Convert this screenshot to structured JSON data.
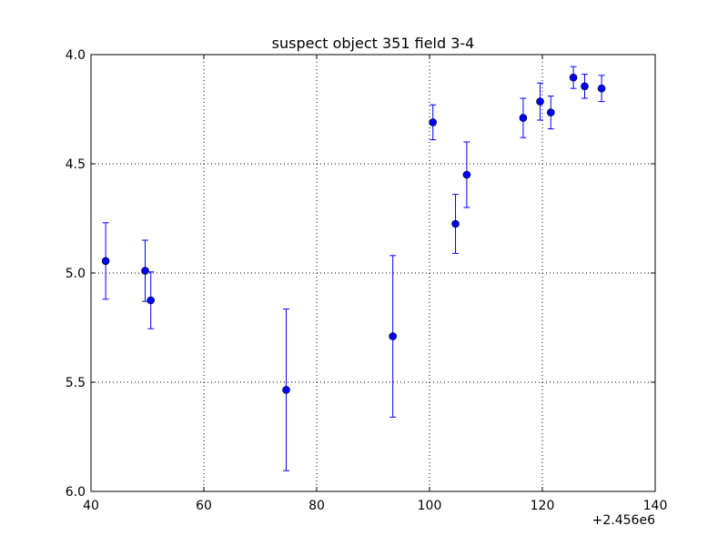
{
  "chart_data": {
    "type": "scatter",
    "title": "suspect object 351 field 3-4",
    "xlabel": "",
    "ylabel": "",
    "x_offset_label": "+2.456e6",
    "xlim": [
      40,
      140
    ],
    "ylim": [
      4.0,
      6.0
    ],
    "y_inverted": true,
    "grid": true,
    "x_ticks": [
      "40",
      "60",
      "80",
      "100",
      "120",
      "140"
    ],
    "y_ticks": [
      "4.0",
      "4.5",
      "5.0",
      "5.5",
      "6.0"
    ],
    "marker_color": "#0000ff",
    "series": [
      {
        "points": [
          {
            "x": 42.6,
            "y": 4.945,
            "err": 0.175
          },
          {
            "x": 49.6,
            "y": 4.99,
            "err": 0.14
          },
          {
            "x": 50.6,
            "y": 5.125,
            "err": 0.13
          },
          {
            "x": 74.6,
            "y": 5.535,
            "err": 0.37
          },
          {
            "x": 93.5,
            "y": 5.29,
            "err": 0.37
          },
          {
            "x": 100.6,
            "y": 4.31,
            "err": 0.08
          },
          {
            "x": 104.6,
            "y": 4.775,
            "err": 0.135
          },
          {
            "x": 106.6,
            "y": 4.55,
            "err": 0.15
          },
          {
            "x": 116.6,
            "y": 4.29,
            "err": 0.09
          },
          {
            "x": 119.6,
            "y": 4.215,
            "err": 0.085
          },
          {
            "x": 121.5,
            "y": 4.265,
            "err": 0.075
          },
          {
            "x": 125.5,
            "y": 4.105,
            "err": 0.05
          },
          {
            "x": 127.5,
            "y": 4.145,
            "err": 0.055
          },
          {
            "x": 130.5,
            "y": 4.155,
            "err": 0.06
          }
        ]
      }
    ]
  }
}
